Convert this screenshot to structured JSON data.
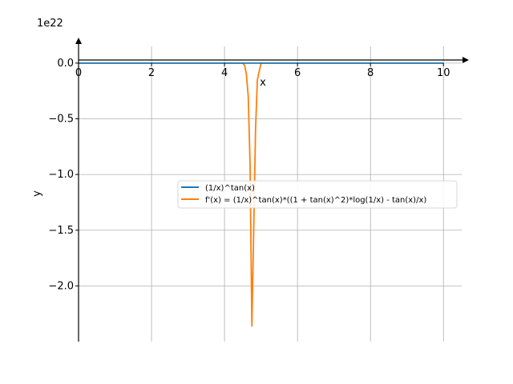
{
  "chart_data": {
    "type": "line",
    "xlabel": "x",
    "ylabel": "y",
    "scale_label": "1e22",
    "xlim": [
      0,
      10.5
    ],
    "ylim": [
      -2.5,
      0.15
    ],
    "x_ticks": [
      0,
      2,
      4,
      6,
      8,
      10
    ],
    "x_tick_labels": [
      "0",
      "2",
      "4",
      "6",
      "8",
      "10"
    ],
    "y_ticks": [
      0.0,
      -0.5,
      -1.0,
      -1.5,
      -2.0
    ],
    "y_tick_labels": [
      "0.0",
      "−0.5",
      "−1.0",
      "−1.5",
      "−2.0"
    ],
    "grid": true,
    "legend_position": "center-right",
    "series": [
      {
        "name": "(1/x)^tan(x)",
        "color": "#1f77b4",
        "x": [
          0,
          4.5,
          4.55,
          4.6,
          4.65,
          4.7,
          4.75,
          4.8,
          4.85,
          4.9,
          5.0,
          10
        ],
        "y": [
          0,
          0,
          0.0,
          0.0,
          0.0,
          0.0,
          0.0,
          0.0,
          0.0,
          0.0,
          0,
          0
        ]
      },
      {
        "name": "f'(x) = (1/x)^tan(x)*((1 + tan(x)^2)*log(1/x) - tan(x)/x)",
        "color": "#ff7f0e",
        "x": [
          0,
          4.5,
          4.55,
          4.6,
          4.65,
          4.7,
          4.75,
          4.8,
          4.85,
          4.9,
          5.0,
          10
        ],
        "y": [
          0,
          0,
          -0.02,
          -0.1,
          -0.3,
          -0.9,
          -2.36,
          -1.5,
          -0.6,
          -0.15,
          0,
          0
        ]
      }
    ]
  }
}
